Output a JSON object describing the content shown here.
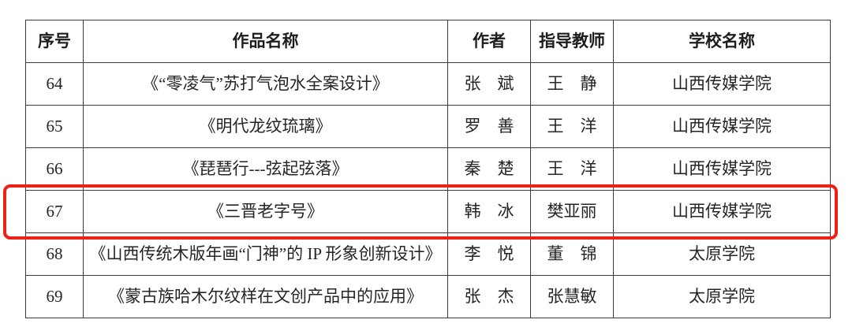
{
  "table": {
    "headers": {
      "no": "序号",
      "title": "作品名称",
      "author": "作者",
      "teacher": "指导教师",
      "school": "学校名称"
    },
    "rows": [
      {
        "no": "64",
        "title": "《“零凌气”苏打气泡水全案设计》",
        "author": "张　斌",
        "teacher": "王　静",
        "school": "山西传媒学院"
      },
      {
        "no": "65",
        "title": "《明代龙纹琉璃》",
        "author": "罗　善",
        "teacher": "王　洋",
        "school": "山西传媒学院"
      },
      {
        "no": "66",
        "title": "《琵琶行---弦起弦落》",
        "author": "秦　楚",
        "teacher": "王　洋",
        "school": "山西传媒学院"
      },
      {
        "no": "67",
        "title": "《三晋老字号》",
        "author": "韩　冰",
        "teacher": "樊亚丽",
        "school": "山西传媒学院"
      },
      {
        "no": "68",
        "title": "《山西传统木版年画“门神”的 IP 形象创新设计》",
        "author": "李　悦",
        "teacher": "董　锦",
        "school": "太原学院"
      },
      {
        "no": "69",
        "title": "《蒙古族哈木尔纹样在文创产品中的应用》",
        "author": "张　杰",
        "teacher": "张慧敏",
        "school": "太原学院"
      }
    ],
    "highlighted_row_no": "67"
  },
  "highlight": {
    "color": "#ee2117"
  }
}
